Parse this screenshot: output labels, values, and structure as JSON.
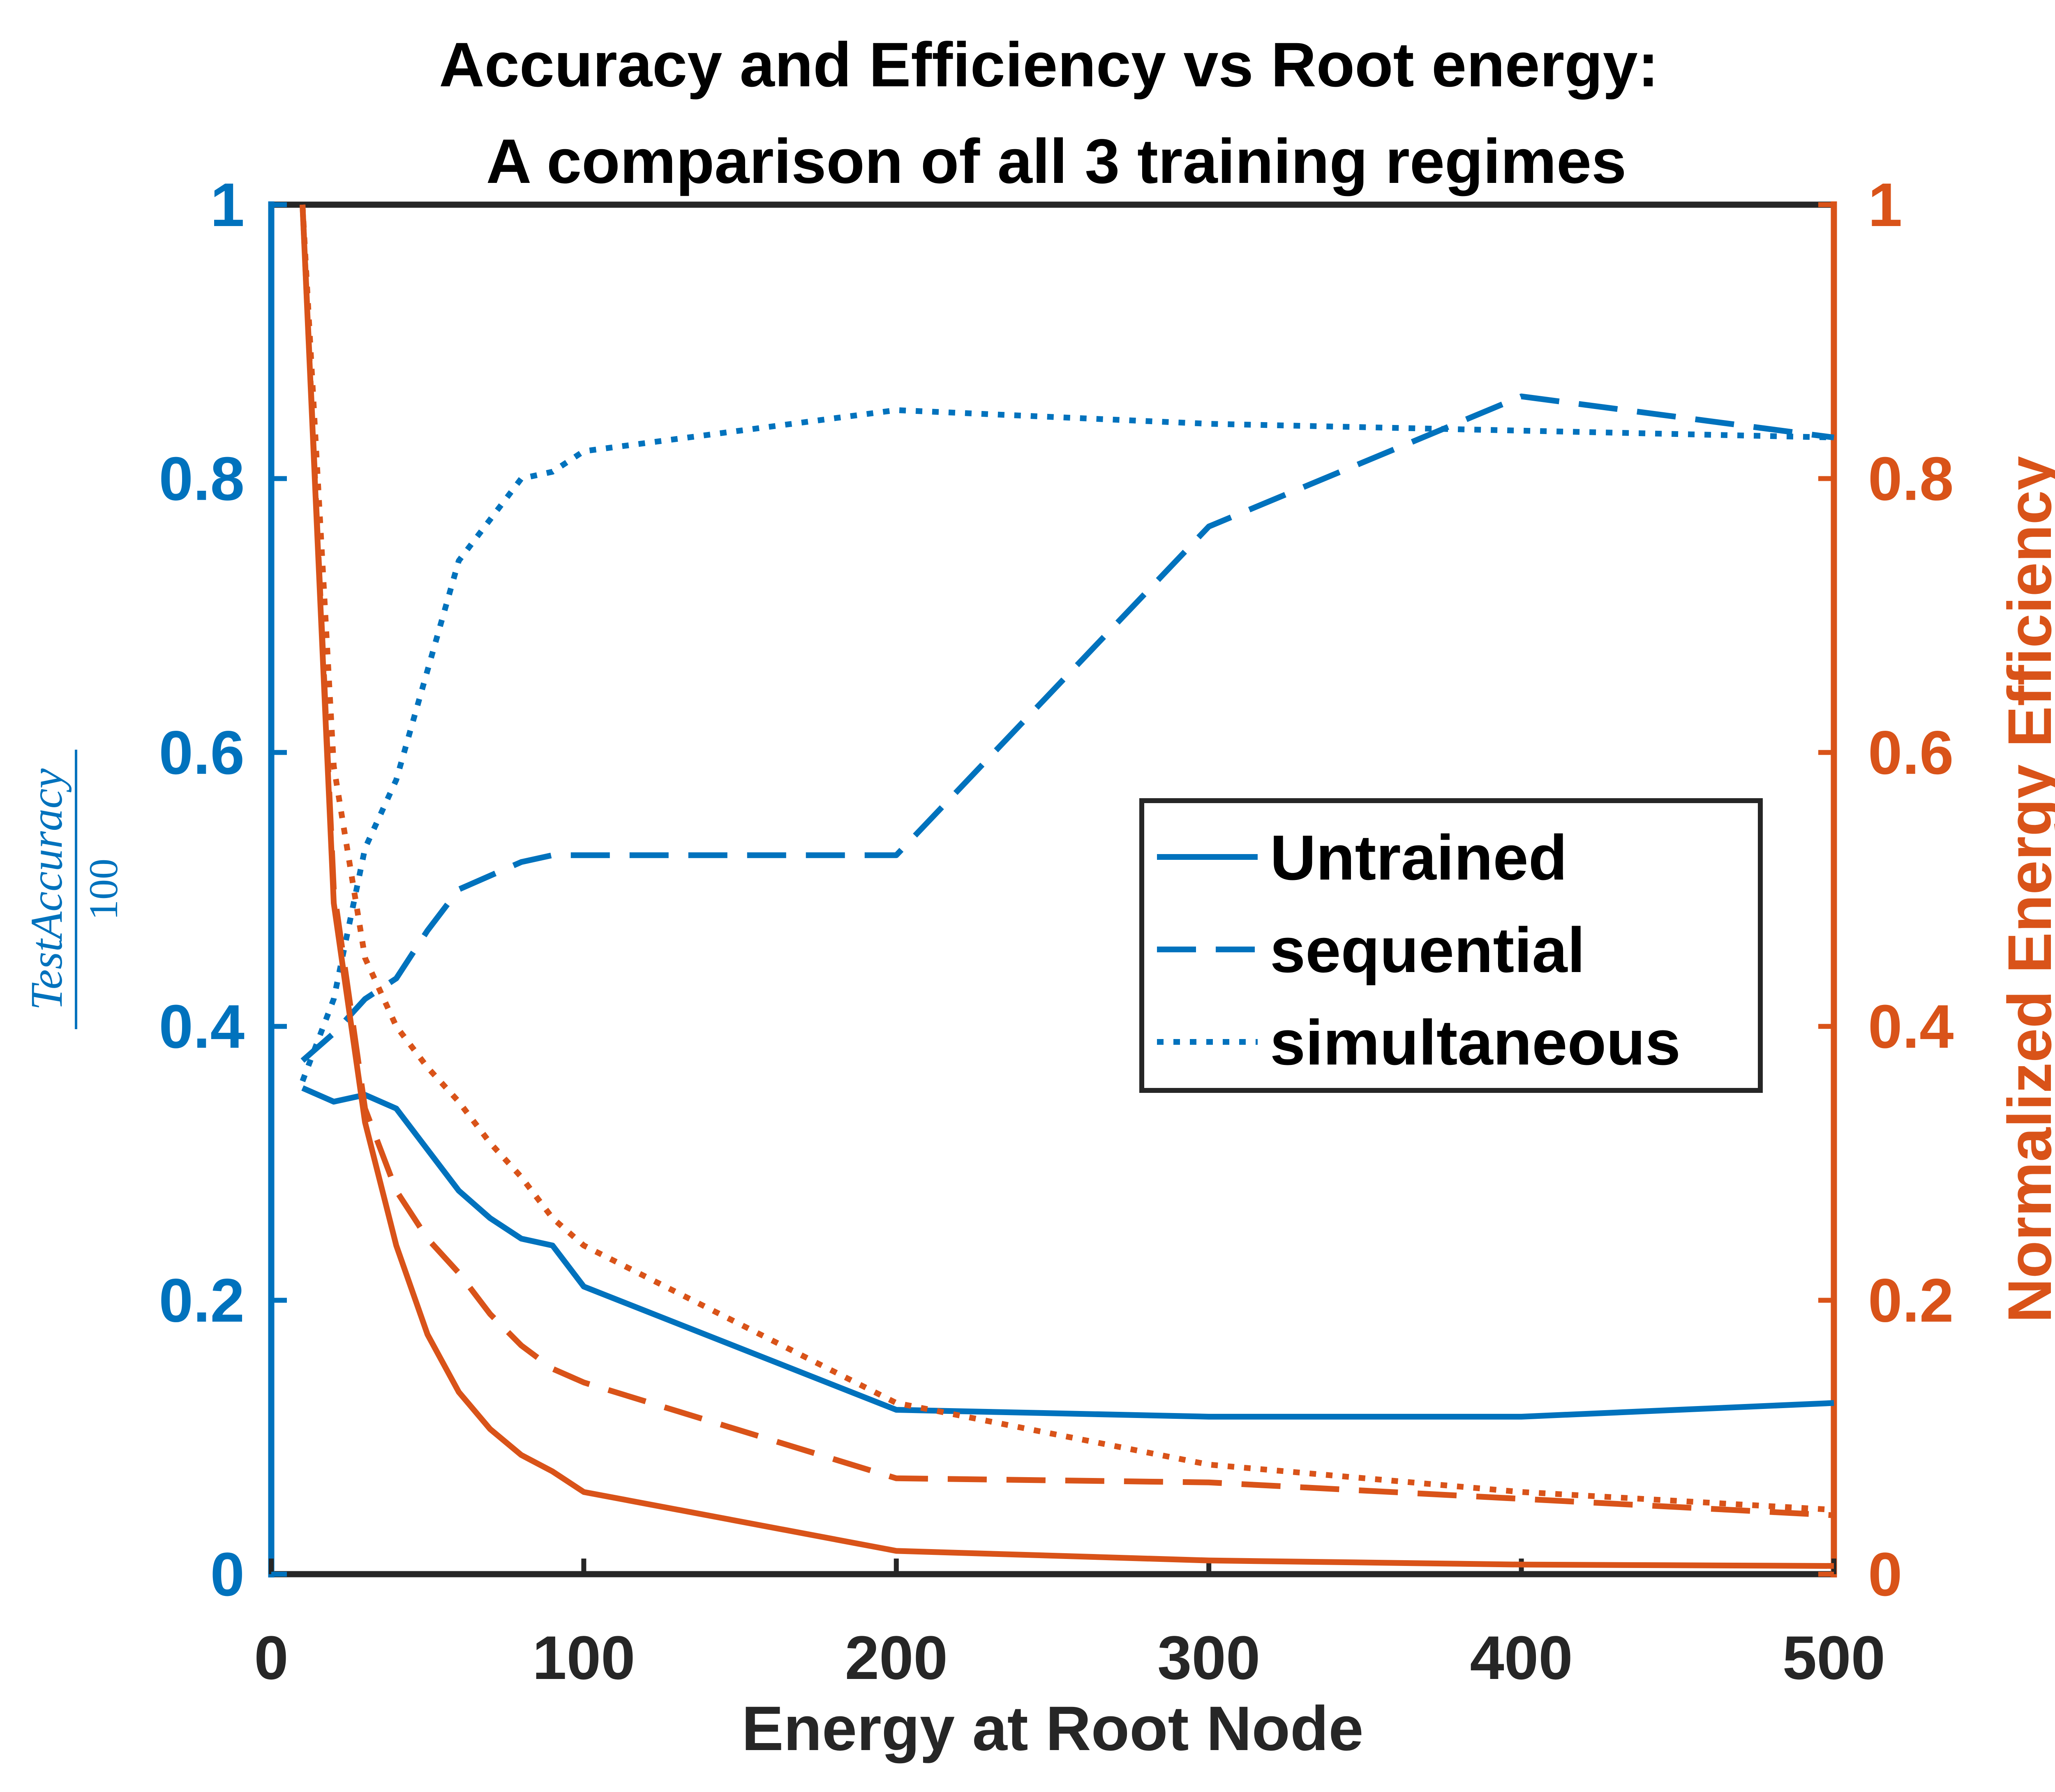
{
  "chart_data": {
    "type": "line",
    "title": [
      "Accuracy and Efficiency vs Root energy:",
      "A comparison of all 3 training regimes"
    ],
    "xlabel": "Energy at Root Node",
    "ylabel_left": "TestAccuracy / 100",
    "ylabel_right": "Normalized Energy Efficiency",
    "xlim": [
      0,
      500
    ],
    "ylim_left": [
      0,
      1
    ],
    "ylim_right": [
      0,
      1
    ],
    "x_ticks": [
      "0",
      "100",
      "200",
      "300",
      "400",
      "500"
    ],
    "y_ticks_left": [
      "0",
      "0.2",
      "0.4",
      "0.6",
      "0.8",
      "1"
    ],
    "y_ticks_right": [
      "0",
      "0.2",
      "0.4",
      "0.6",
      "0.8",
      "1"
    ],
    "grid": false,
    "legend_position": "center-right",
    "colors": {
      "left_axis": "#0072BD",
      "right_axis": "#D95319",
      "frame": "#262626"
    },
    "legend": [
      {
        "label": "Untrained",
        "style": "solid"
      },
      {
        "label": "sequential",
        "style": "dashed"
      },
      {
        "label": "simultaneous",
        "style": "dotted"
      }
    ],
    "accuracy_series": [
      {
        "style": "solid",
        "x": [
          10,
          20,
          30,
          40,
          50,
          60,
          70,
          80,
          90,
          100,
          200,
          300,
          400,
          500
        ],
        "y": [
          0.355,
          0.345,
          0.35,
          0.34,
          0.31,
          0.28,
          0.26,
          0.245,
          0.24,
          0.21,
          0.12,
          0.115,
          0.115,
          0.125
        ]
      },
      {
        "style": "dashed",
        "x": [
          10,
          20,
          30,
          40,
          50,
          60,
          70,
          80,
          90,
          100,
          200,
          300,
          400,
          500
        ],
        "y": [
          0.375,
          0.395,
          0.42,
          0.435,
          0.47,
          0.5,
          0.51,
          0.52,
          0.525,
          0.525,
          0.525,
          0.765,
          0.86,
          0.83
        ]
      },
      {
        "style": "dotted",
        "x": [
          10,
          20,
          30,
          40,
          50,
          60,
          70,
          80,
          90,
          100,
          200,
          300,
          400,
          500
        ],
        "y": [
          0.36,
          0.42,
          0.53,
          0.58,
          0.66,
          0.74,
          0.77,
          0.8,
          0.805,
          0.82,
          0.85,
          0.84,
          0.835,
          0.83
        ]
      }
    ],
    "efficiency_series": [
      {
        "style": "solid",
        "x": [
          10,
          20,
          30,
          40,
          50,
          60,
          70,
          80,
          90,
          100,
          200,
          300,
          400,
          500
        ],
        "y": [
          1.0,
          0.49,
          0.33,
          0.24,
          0.175,
          0.133,
          0.106,
          0.087,
          0.075,
          0.06,
          0.017,
          0.01,
          0.007,
          0.006
        ]
      },
      {
        "style": "dashed",
        "x": [
          10,
          20,
          30,
          40,
          50,
          60,
          70,
          80,
          90,
          100,
          200,
          300,
          400,
          500
        ],
        "y": [
          1.0,
          0.5,
          0.34,
          0.28,
          0.245,
          0.22,
          0.19,
          0.167,
          0.15,
          0.14,
          0.07,
          0.067,
          0.055,
          0.043
        ]
      },
      {
        "style": "dotted",
        "x": [
          10,
          20,
          30,
          40,
          50,
          60,
          70,
          80,
          90,
          100,
          200,
          300,
          400,
          500
        ],
        "y": [
          1.0,
          0.59,
          0.45,
          0.4,
          0.37,
          0.345,
          0.315,
          0.29,
          0.26,
          0.24,
          0.125,
          0.08,
          0.06,
          0.047
        ]
      }
    ]
  }
}
